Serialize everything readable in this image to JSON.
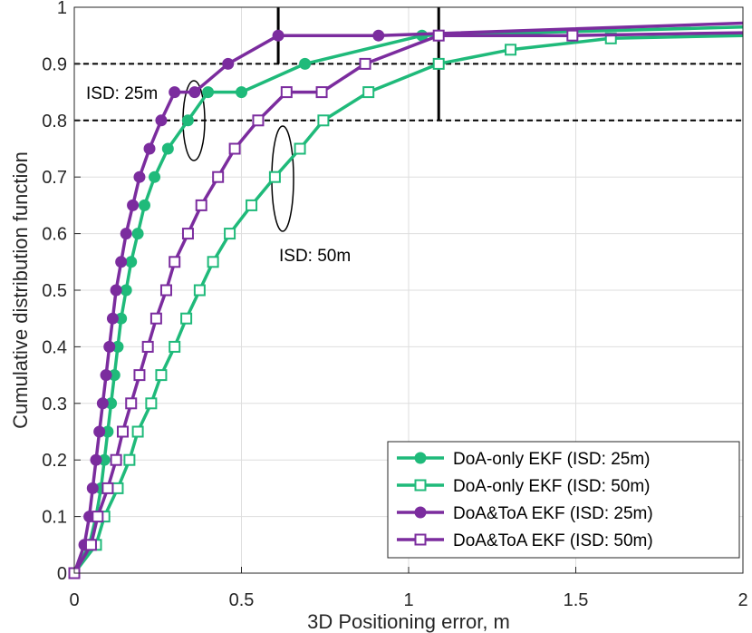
{
  "chart_data": {
    "type": "line",
    "title": "",
    "xlabel": "3D Positioning error, m",
    "ylabel": "Cumulative distribution function",
    "xlim": [
      0,
      2
    ],
    "ylim": [
      0,
      1
    ],
    "xticks": [
      "0",
      "0.5",
      "1",
      "1.5",
      "2"
    ],
    "yticks": [
      "0",
      "0.1",
      "0.2",
      "0.3",
      "0.4",
      "0.5",
      "0.6",
      "0.7",
      "0.8",
      "0.9",
      "1"
    ],
    "grid": true,
    "legend_position": "bottom-right",
    "colors": {
      "green": "#1fba7a",
      "purple": "#7b2c9e"
    },
    "series": [
      {
        "name": "DoA-only EKF (ISD: 25m)",
        "color": "#1fba7a",
        "marker": "circle",
        "x": [
          0,
          0.045,
          0.065,
          0.08,
          0.09,
          0.1,
          0.11,
          0.12,
          0.13,
          0.14,
          0.155,
          0.17,
          0.19,
          0.21,
          0.24,
          0.28,
          0.34,
          0.4,
          0.5,
          0.69,
          1.04,
          2.0
        ],
        "y": [
          0,
          0.05,
          0.1,
          0.15,
          0.2,
          0.25,
          0.3,
          0.35,
          0.4,
          0.45,
          0.5,
          0.55,
          0.6,
          0.65,
          0.7,
          0.75,
          0.8,
          0.85,
          0.85,
          0.9,
          0.95,
          0.965
        ]
      },
      {
        "name": "DoA-only EKF (ISD: 50m)",
        "color": "#1fba7a",
        "marker": "square",
        "x": [
          0,
          0.065,
          0.09,
          0.13,
          0.165,
          0.19,
          0.23,
          0.26,
          0.3,
          0.335,
          0.375,
          0.415,
          0.465,
          0.53,
          0.6,
          0.675,
          0.745,
          0.88,
          1.09,
          1.305,
          1.605,
          2.0
        ],
        "y": [
          0,
          0.05,
          0.1,
          0.15,
          0.2,
          0.25,
          0.3,
          0.35,
          0.4,
          0.45,
          0.5,
          0.55,
          0.6,
          0.65,
          0.7,
          0.75,
          0.8,
          0.85,
          0.9,
          0.925,
          0.945,
          0.95
        ]
      },
      {
        "name": "DoA&ToA EKF (ISD: 25m)",
        "color": "#7b2c9e",
        "marker": "circle",
        "x": [
          0,
          0.03,
          0.045,
          0.055,
          0.065,
          0.075,
          0.085,
          0.095,
          0.105,
          0.115,
          0.125,
          0.14,
          0.155,
          0.175,
          0.195,
          0.225,
          0.26,
          0.3,
          0.36,
          0.46,
          0.61,
          0.91,
          2.0
        ],
        "y": [
          0,
          0.05,
          0.1,
          0.15,
          0.2,
          0.25,
          0.3,
          0.35,
          0.4,
          0.45,
          0.5,
          0.55,
          0.6,
          0.65,
          0.7,
          0.75,
          0.8,
          0.85,
          0.85,
          0.9,
          0.95,
          0.95,
          0.972
        ]
      },
      {
        "name": "DoA&ToA EKF (ISD: 50m)",
        "color": "#7b2c9e",
        "marker": "square",
        "x": [
          0,
          0.05,
          0.07,
          0.1,
          0.125,
          0.145,
          0.17,
          0.195,
          0.22,
          0.245,
          0.275,
          0.3,
          0.34,
          0.38,
          0.43,
          0.48,
          0.55,
          0.635,
          0.74,
          0.87,
          1.09,
          1.49,
          2.0
        ],
        "y": [
          0,
          0.05,
          0.1,
          0.15,
          0.2,
          0.25,
          0.3,
          0.35,
          0.4,
          0.45,
          0.5,
          0.55,
          0.6,
          0.65,
          0.7,
          0.75,
          0.8,
          0.85,
          0.85,
          0.9,
          0.95,
          0.95,
          0.955
        ]
      }
    ],
    "reference_lines": [
      {
        "orientation": "horizontal",
        "y": 0.9,
        "style": "dashed"
      },
      {
        "orientation": "horizontal",
        "y": 0.8,
        "style": "dashed"
      },
      {
        "orientation": "vertical",
        "x": 0.61,
        "y_from": 0.9,
        "y_to": 1.0
      },
      {
        "orientation": "vertical",
        "x": 1.09,
        "y_from": 0.8,
        "y_to": 1.0
      }
    ],
    "annotations": [
      {
        "text": "ISD: 25m",
        "x": 0.37,
        "y": 0.8
      },
      {
        "text": "ISD: 50m",
        "x": 0.62,
        "y": 0.65
      }
    ]
  }
}
